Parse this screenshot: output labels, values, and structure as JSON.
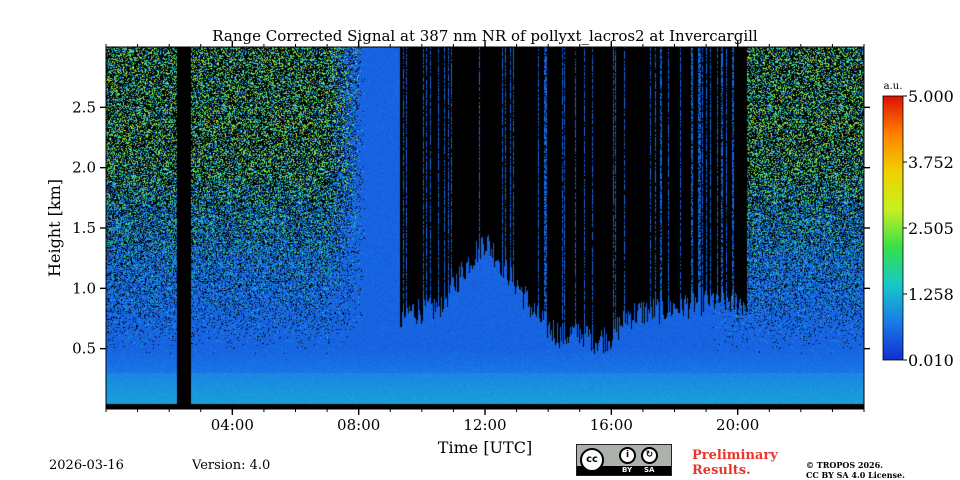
{
  "chart_data": {
    "type": "heatmap",
    "title": "Range Corrected Signal at 387 nm NR of pollyxt_lacros2 at Invercargill",
    "xlabel": "Time [UTC]",
    "ylabel": "Height [km]",
    "xlim_hours": [
      0,
      24
    ],
    "ylim_km": [
      0,
      3.0
    ],
    "xticks": [
      {
        "hour": 4,
        "label": "04:00"
      },
      {
        "hour": 8,
        "label": "08:00"
      },
      {
        "hour": 12,
        "label": "12:00"
      },
      {
        "hour": 16,
        "label": "16:00"
      },
      {
        "hour": 20,
        "label": "20:00"
      }
    ],
    "yticks": [
      {
        "km": 0.5,
        "label": "0.5"
      },
      {
        "km": 1.0,
        "label": "1.0"
      },
      {
        "km": 1.5,
        "label": "1.5"
      },
      {
        "km": 2.0,
        "label": "2.0"
      },
      {
        "km": 2.5,
        "label": "2.5"
      }
    ],
    "colorbar": {
      "unit": "a.u.",
      "min": 0.01,
      "max": 5.0,
      "ticks": [
        {
          "value": 0.01,
          "label": "0.010"
        },
        {
          "value": 1.258,
          "label": "1.258"
        },
        {
          "value": 2.505,
          "label": "2.505"
        },
        {
          "value": 3.752,
          "label": "3.752"
        },
        {
          "value": 5.0,
          "label": "5.000"
        }
      ],
      "colors": [
        "#1030d0",
        "#1a7ae8",
        "#18c8c8",
        "#38e048",
        "#c8f020",
        "#f0d000",
        "#ff8000",
        "#e01000"
      ]
    },
    "no_data_periods_hours": [
      [
        2.25,
        2.7
      ]
    ],
    "cloud_top_profile_km": [
      [
        9.3,
        0.62
      ],
      [
        9.6,
        0.68
      ],
      [
        10.0,
        0.7
      ],
      [
        10.5,
        0.72
      ],
      [
        11.0,
        0.9
      ],
      [
        11.5,
        1.1
      ],
      [
        12.0,
        1.28
      ],
      [
        12.5,
        1.1
      ],
      [
        13.0,
        0.92
      ],
      [
        13.5,
        0.7
      ],
      [
        14.0,
        0.55
      ],
      [
        14.5,
        0.48
      ],
      [
        15.0,
        0.52
      ],
      [
        15.5,
        0.45
      ],
      [
        16.0,
        0.48
      ],
      [
        16.5,
        0.65
      ],
      [
        17.0,
        0.68
      ],
      [
        17.5,
        0.7
      ],
      [
        18.0,
        0.72
      ],
      [
        18.5,
        0.75
      ],
      [
        19.0,
        0.78
      ],
      [
        19.5,
        0.78
      ],
      [
        20.0,
        0.76
      ],
      [
        20.3,
        0.75
      ]
    ]
  },
  "footer": {
    "date": "2026-03-16",
    "version": "Version: 4.0",
    "license_tags": [
      "BY",
      "SA"
    ],
    "license_icons": [
      "cc-icon",
      "by-icon",
      "sa-icon"
    ],
    "prelim_line1": "Preliminary",
    "prelim_line2": "Results.",
    "copyright_line1": "© TROPOS 2026.",
    "copyright_line2": "CC BY SA 4.0 License."
  }
}
